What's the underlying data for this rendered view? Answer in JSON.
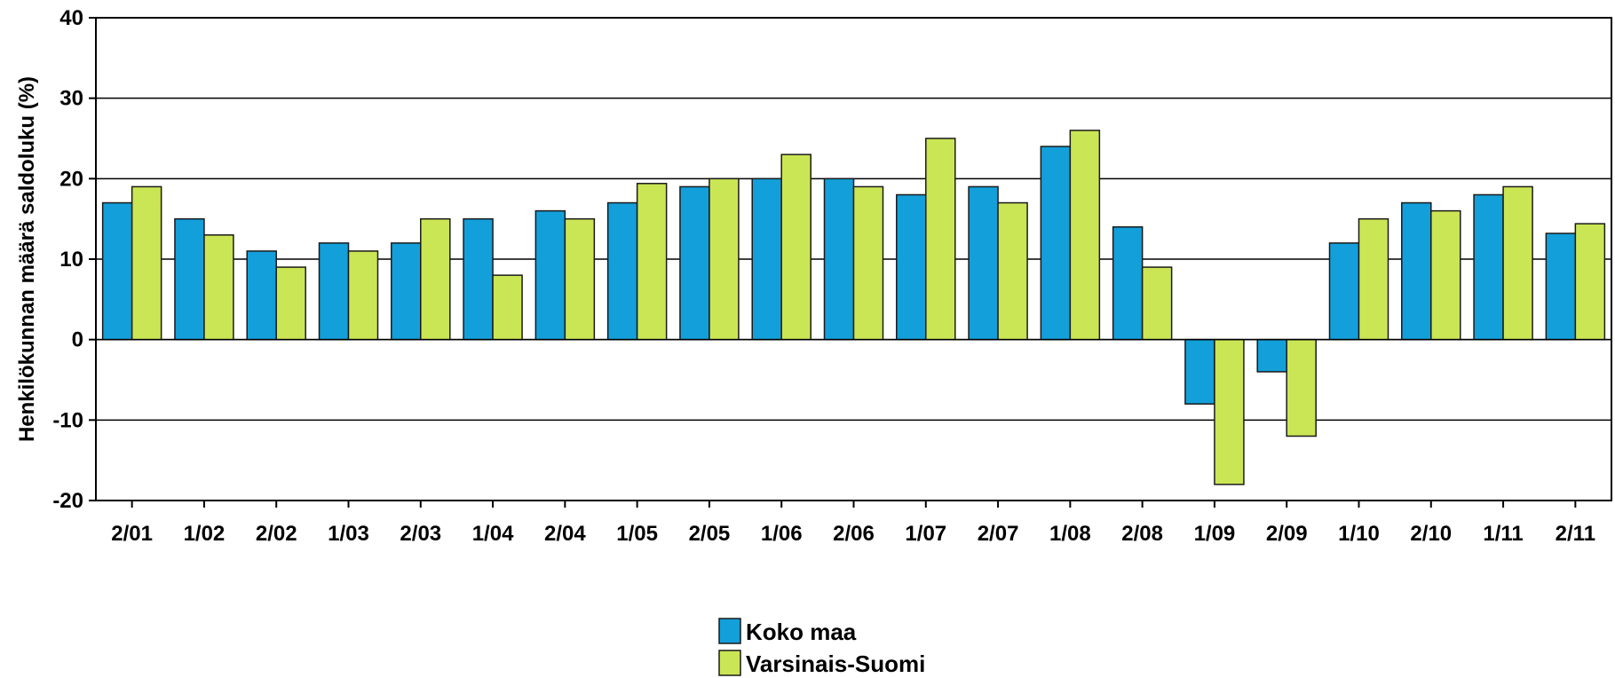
{
  "chart_data": {
    "type": "bar",
    "title": "",
    "xlabel": "",
    "ylabel": "Henkilökunnan määrä saldoluku (%)",
    "ylim": [
      -20,
      40
    ],
    "yticks": [
      -20,
      -10,
      0,
      10,
      20,
      30,
      40
    ],
    "grid": "horizontal",
    "legend_position": "bottom-center",
    "categories": [
      "2/01",
      "1/02",
      "2/02",
      "1/03",
      "2/03",
      "1/04",
      "2/04",
      "1/05",
      "2/05",
      "1/06",
      "2/06",
      "1/07",
      "2/07",
      "1/08",
      "2/08",
      "1/09",
      "2/09",
      "1/10",
      "2/10",
      "1/11",
      "2/11"
    ],
    "series": [
      {
        "name": "Koko maa",
        "color": "#139fda",
        "values": [
          17,
          15,
          11,
          12,
          12,
          15,
          16,
          17,
          19,
          20,
          20,
          18,
          19,
          24,
          14,
          -8,
          -4,
          12,
          17,
          18,
          13.2
        ]
      },
      {
        "name": "Varsinais-Suomi",
        "color": "#cbe655",
        "values": [
          19,
          13,
          9,
          11,
          15,
          8,
          15,
          19.4,
          20,
          23,
          19,
          25,
          17,
          26,
          9,
          -18,
          -12,
          15,
          16,
          19,
          14.4
        ]
      }
    ]
  }
}
